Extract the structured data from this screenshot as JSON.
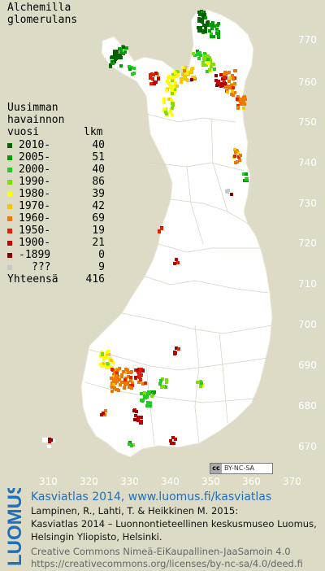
{
  "title": {
    "line1": "Alchemilla",
    "line2": "glomerulans"
  },
  "legend": {
    "header1": "Uusimman",
    "header2": "havainnon",
    "header3": "vuosi",
    "count_header": "lkm",
    "items": [
      {
        "label": "2010-",
        "count": "40",
        "color": "#006400"
      },
      {
        "label": "2005-",
        "count": "51",
        "color": "#00a000"
      },
      {
        "label": "2000-",
        "count": "40",
        "color": "#22cc22"
      },
      {
        "label": "1990-",
        "count": "86",
        "color": "#7fe000"
      },
      {
        "label": "1980-",
        "count": "39",
        "color": "#ffff00"
      },
      {
        "label": "1970-",
        "count": "42",
        "color": "#f5c800"
      },
      {
        "label": "1960-",
        "count": "69",
        "color": "#f07800"
      },
      {
        "label": "1950-",
        "count": "19",
        "color": "#e02000"
      },
      {
        "label": "1900-",
        "count": "21",
        "color": "#c00000"
      },
      {
        "label": "-1899",
        "count": "0",
        "color": "#8b0000"
      },
      {
        "label": "???",
        "count": "9",
        "color": "#c8c8c8"
      }
    ],
    "total_label": "Yhteensä",
    "total_count": "416"
  },
  "map": {
    "y_ticks": [
      "770",
      "760",
      "750",
      "740",
      "730",
      "720",
      "710",
      "700",
      "690",
      "680",
      "670"
    ],
    "x_ticks": [
      "310",
      "320",
      "330",
      "340",
      "350",
      "360",
      "370"
    ],
    "land_color": "#ffffff",
    "sea_color": "#dddbc6",
    "border_color": "#cfcdb8"
  },
  "license_badge": {
    "left": "cc",
    "right": "BY-NC-SA"
  },
  "brand": {
    "text": "LUOMUS",
    "color": "#1d6fc0"
  },
  "footer": {
    "line1": "Kasviatlas 2014, www.luomus.fi/kasviatlas",
    "line2": "Lampinen, R., Lahti, T. & Heikkinen M. 2015:",
    "line3": "Kasviatlas 2014 – Luonnontieteellinen keskusmuseo Luomus,",
    "line4": "Helsingin Yliopisto, Helsinki.",
    "line5": "Creative Commons Nimeä-EiKaupallinen-JaaSamoin 4.0",
    "line6": "https://creativecommons.org/licenses/by-nc-sa/4.0/deed.fi",
    "link_color": "#1d6fc0",
    "gray_color": "#666666"
  }
}
